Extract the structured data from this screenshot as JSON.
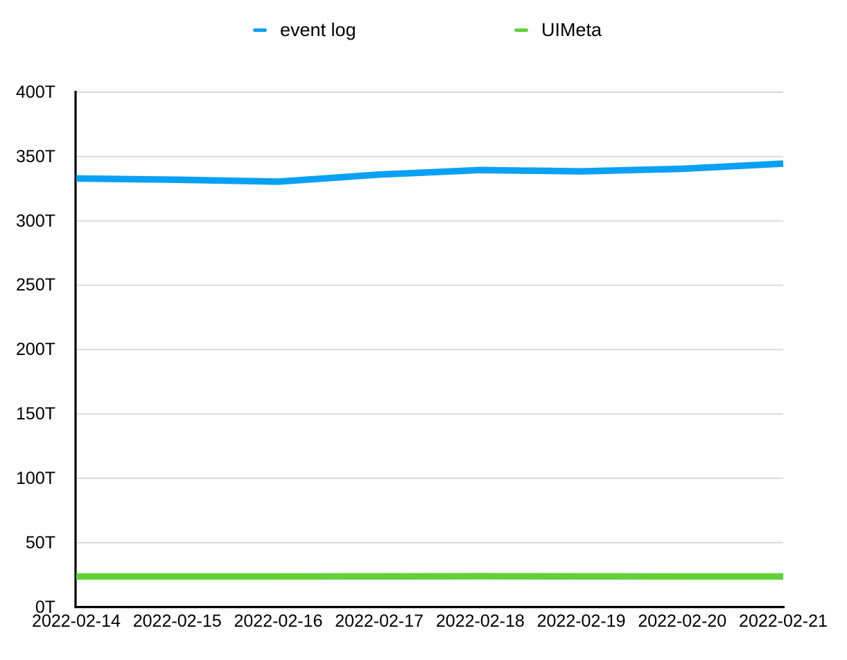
{
  "page": {
    "background": "#ffffff"
  },
  "legend": {
    "items": [
      {
        "label": "event log",
        "color": "#0aa1f4"
      },
      {
        "label": "UIMeta",
        "color": "#62d139"
      }
    ]
  },
  "chart_data": {
    "type": "line",
    "title": "",
    "xlabel": "",
    "ylabel": "",
    "categories": [
      "2022-02-14",
      "2022-02-15",
      "2022-02-16",
      "2022-02-17",
      "2022-02-18",
      "2022-02-19",
      "2022-02-20",
      "2022-02-21"
    ],
    "series": [
      {
        "name": "event log",
        "color": "#0aa1f4",
        "values": [
          333,
          332,
          330.5,
          336,
          339.5,
          338.5,
          340.5,
          344.5
        ]
      },
      {
        "name": "UIMeta",
        "color": "#62d139",
        "values": [
          23.7,
          23.7,
          23.7,
          23.8,
          23.9,
          23.8,
          23.7,
          23.7
        ]
      }
    ],
    "ylim": [
      0,
      400
    ],
    "ytick_step": 50,
    "ytick_labels": [
      "0T",
      "50T",
      "100T",
      "150T",
      "200T",
      "250T",
      "300T",
      "350T",
      "400T"
    ],
    "unit": "T",
    "grid": true,
    "legend_position": "top",
    "grid_color": "#dcdcdc",
    "axis_color": "#000000",
    "text_color": "#000000"
  }
}
